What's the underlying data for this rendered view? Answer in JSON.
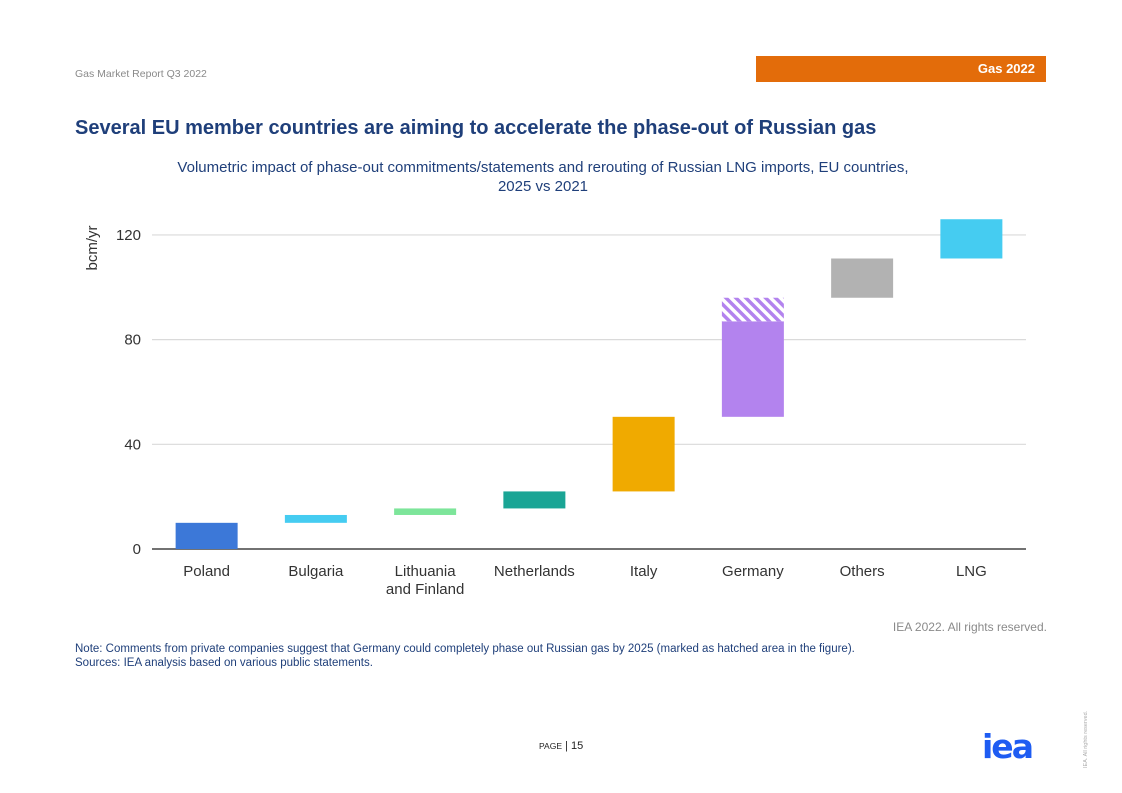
{
  "header": {
    "report_name": "Gas Market Report Q3 2022",
    "badge_label": "Gas 2022",
    "badge_color": "#e36c0a"
  },
  "page_title": "Several EU member countries are aiming to accelerate the phase-out of Russian gas",
  "chart_data": {
    "type": "bar",
    "subtype": "waterfall",
    "title_lines": [
      "Volumetric impact of phase-out commitments/statements and rerouting of Russian LNG imports, EU countries,",
      "2025 vs 2021"
    ],
    "ylabel": "bcm/yr",
    "ylim": [
      0,
      128
    ],
    "yticks": [
      0,
      40,
      80,
      120
    ],
    "grid": true,
    "categories": [
      {
        "label_lines": [
          "Poland"
        ],
        "start": 0,
        "end": 10,
        "color": "#3c78d8"
      },
      {
        "label_lines": [
          "Bulgaria"
        ],
        "start": 10,
        "end": 13,
        "color": "#45ccf1"
      },
      {
        "label_lines": [
          "Lithuania",
          "and Finland"
        ],
        "start": 13,
        "end": 15.5,
        "color": "#7de59a"
      },
      {
        "label_lines": [
          "Netherlands"
        ],
        "start": 15.5,
        "end": 22,
        "color": "#1aa595"
      },
      {
        "label_lines": [
          "Italy"
        ],
        "start": 22,
        "end": 50.5,
        "color": "#f0aa00"
      },
      {
        "label_lines": [
          "Germany"
        ],
        "start": 50.5,
        "end": 87,
        "color": "#b383ee",
        "hatched_start": 87,
        "hatched_end": 96
      },
      {
        "label_lines": [
          "Others"
        ],
        "start": 96,
        "end": 111,
        "color": "#b2b2b2"
      },
      {
        "label_lines": [
          "LNG"
        ],
        "start": 111,
        "end": 126,
        "color": "#45ccf1"
      }
    ]
  },
  "credit": "IEA 2022. All rights reserved.",
  "notes": {
    "note": "Note: Comments from private companies suggest that Germany could completely phase out Russian gas by 2025 (marked as hatched area in the figure).",
    "sources": "Sources: IEA analysis based on various public statements."
  },
  "footer": {
    "page_label": "Page",
    "page_sep": " | ",
    "page_number": "15",
    "logo_text": "iea",
    "logo_color": "#1e5cf2",
    "side_rights": "IEA. All rights reserved."
  }
}
